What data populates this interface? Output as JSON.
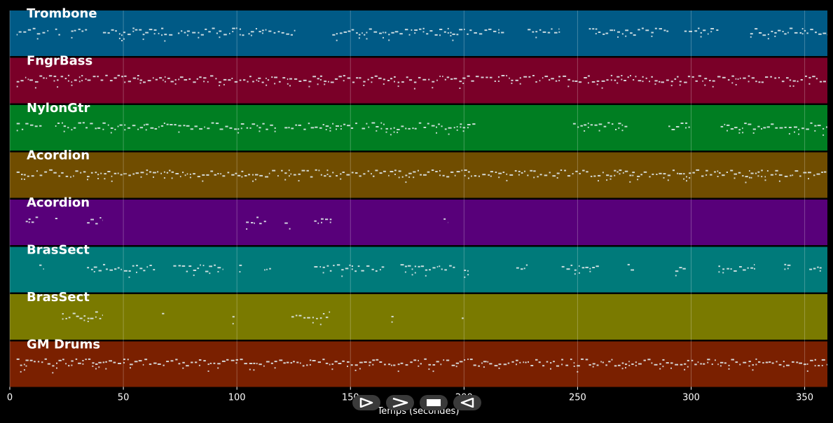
{
  "chart_data": {
    "type": "piano-roll",
    "xlabel": "Temps (secondes)",
    "xlim": [
      0,
      360
    ],
    "xticks": [
      0,
      50,
      100,
      150,
      200,
      250,
      300,
      350
    ],
    "grid": true,
    "tracks": [
      {
        "name": "Trombone",
        "color": "#005a86",
        "active": [
          [
            3,
            17
          ],
          [
            20,
            23
          ],
          [
            27,
            34
          ],
          [
            41,
            72
          ],
          [
            74,
            104
          ],
          [
            105,
            117
          ],
          [
            118,
            126
          ],
          [
            142,
            218
          ],
          [
            228,
            242
          ],
          [
            255,
            290
          ],
          [
            297,
            312
          ],
          [
            326,
            360
          ]
        ]
      },
      {
        "name": "FngrBass",
        "color": "#7a0028",
        "active": [
          [
            3,
            360
          ]
        ]
      },
      {
        "name": "NylonGtr",
        "color": "#007e22",
        "active": [
          [
            3,
            14
          ],
          [
            20,
            118
          ],
          [
            121,
            153
          ],
          [
            155,
            205
          ],
          [
            248,
            272
          ],
          [
            290,
            300
          ],
          [
            313,
            360
          ]
        ]
      },
      {
        "name": "Acordion",
        "color": "#704d00",
        "active": [
          [
            3,
            360
          ]
        ]
      },
      {
        "name": "Acordion",
        "color": "#58007a",
        "active": [
          [
            7,
            13
          ],
          [
            20,
            21
          ],
          [
            34,
            41
          ],
          [
            104,
            113
          ],
          [
            121,
            123
          ],
          [
            134,
            142
          ],
          [
            191,
            193
          ]
        ]
      },
      {
        "name": "BrasSect",
        "color": "#007a7a",
        "active": [
          [
            13,
            15
          ],
          [
            34,
            64
          ],
          [
            72,
            94
          ],
          [
            101,
            103
          ],
          [
            112,
            115
          ],
          [
            134,
            165
          ],
          [
            172,
            196
          ],
          [
            200,
            202
          ],
          [
            223,
            228
          ],
          [
            243,
            260
          ],
          [
            272,
            275
          ],
          [
            293,
            298
          ],
          [
            312,
            328
          ],
          [
            341,
            344
          ],
          [
            352,
            358
          ]
        ]
      },
      {
        "name": "BrasSect",
        "color": "#7a7a00",
        "active": [
          [
            23,
            41
          ],
          [
            67,
            68
          ],
          [
            98,
            99
          ],
          [
            124,
            141
          ],
          [
            168,
            169
          ],
          [
            199,
            200
          ]
        ]
      },
      {
        "name": "GM Drums",
        "color": "#7a2000",
        "active": [
          [
            3,
            360
          ]
        ]
      }
    ]
  },
  "player": {
    "buttons": [
      {
        "name": "play-button",
        "icon": "play-icon"
      },
      {
        "name": "fast-forward-button",
        "icon": "fast-forward-icon"
      },
      {
        "name": "stop-button",
        "icon": "stop-icon"
      },
      {
        "name": "rewind-button",
        "icon": "rewind-icon"
      }
    ]
  }
}
